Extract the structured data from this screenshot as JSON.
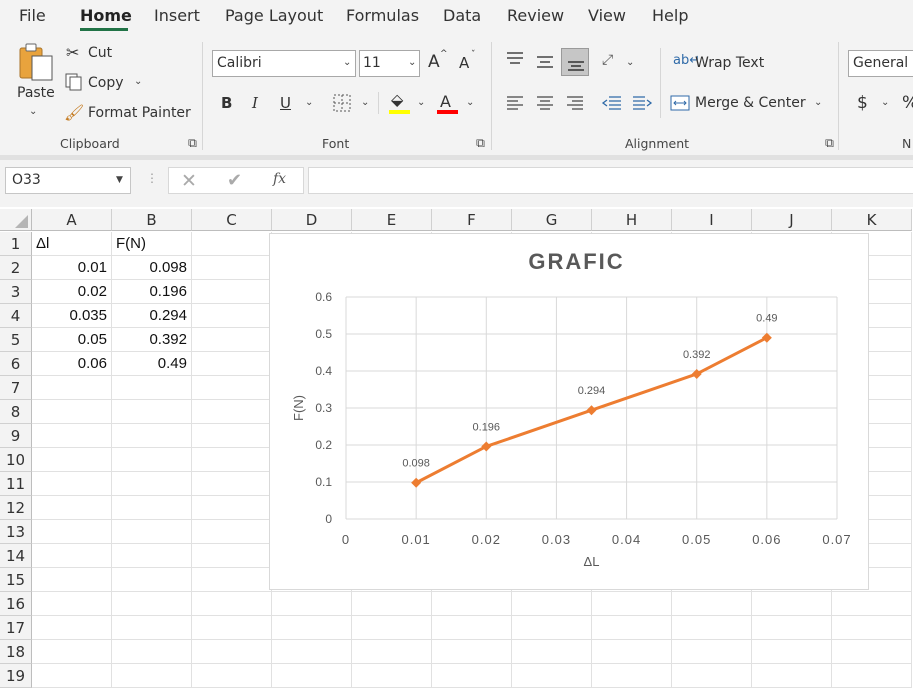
{
  "ribbon": {
    "tabs": [
      "File",
      "Home",
      "Insert",
      "Page Layout",
      "Formulas",
      "Data",
      "Review",
      "View",
      "Help"
    ],
    "clipboard": {
      "paste": "Paste",
      "cut": "Cut",
      "copy": "Copy",
      "format_painter": "Format Painter",
      "group": "Clipboard"
    },
    "font": {
      "name": "Calibri",
      "size": "11",
      "bold": "B",
      "italic": "I",
      "underline": "U",
      "grow": "A",
      "shrink": "A",
      "highlight_color": "#ffff00",
      "font_color": "#ff0000",
      "font_glyph": "A",
      "group": "Font"
    },
    "alignment": {
      "wrap_text": "Wrap Text",
      "merge_center": "Merge & Center",
      "group": "Alignment"
    },
    "number": {
      "format": "General",
      "currency": "$",
      "percent": "%",
      "group": "N"
    }
  },
  "formula_bar": {
    "name_box": "O33",
    "fx": "fx",
    "formula": ""
  },
  "columns": [
    "A",
    "B",
    "C",
    "D",
    "E",
    "F",
    "G",
    "H",
    "I",
    "J",
    "K"
  ],
  "rows": [
    "1",
    "2",
    "3",
    "4",
    "5",
    "6",
    "7",
    "8",
    "9",
    "10",
    "11",
    "12",
    "13",
    "14",
    "15",
    "16",
    "17",
    "18",
    "19"
  ],
  "cells": {
    "A1": "Δl",
    "B1": "F(N)",
    "A2": "0.01",
    "B2": "0.098",
    "A3": "0.02",
    "B3": "0.196",
    "A4": "0.035",
    "B4": "0.294",
    "A5": "0.05",
    "B5": "0.392",
    "A6": "0.06",
    "B6": "0.49"
  },
  "chart_data": {
    "type": "line",
    "title": "GRAFIC",
    "xlabel": "ΔL",
    "ylabel": "F(N)",
    "x": [
      0.01,
      0.02,
      0.035,
      0.05,
      0.06
    ],
    "series": [
      {
        "values": [
          0.098,
          0.196,
          0.294,
          0.392,
          0.49
        ],
        "color": "#ed7d31"
      }
    ],
    "data_labels": [
      "0.098",
      "0.196",
      "0.294",
      "0.392",
      "0.49"
    ],
    "xlim": [
      0,
      0.07
    ],
    "ylim": [
      0,
      0.6
    ],
    "xticks": [
      "0",
      "0.01",
      "0.02",
      "0.03",
      "0.04",
      "0.05",
      "0.06",
      "0.07"
    ],
    "yticks": [
      "0",
      "0.1",
      "0.2",
      "0.3",
      "0.4",
      "0.5",
      "0.6"
    ],
    "grid": true,
    "legend": "none"
  },
  "colors": {
    "accent": "#217346",
    "series": "#ed7d31",
    "text": "#595959"
  }
}
